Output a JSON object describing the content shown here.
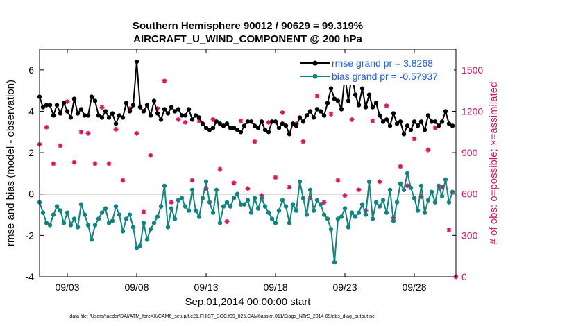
{
  "chart_data": {
    "type": "line",
    "title": "Southern Hemisphere 90012 / 90629 = 99.319%",
    "subtitle": "AIRCRAFT_U_WIND_COMPONENT @ 200 hPa",
    "xlabel": "Sep.01,2014 00:00:00 start",
    "ylabel": "rmse and bias (model - observation)",
    "y2label": "# of obs: o=possible; ×=assimilated",
    "footnote": "data file: /Users/raeder/DAI/ATM_forcXX/CAM6_setup/f.e21.FHIST_BGC.f09_025.CAM6assim.011/Diags_NTrS_2014-09/obs_diag_output.nc",
    "xlim": [
      1.0,
      31.0
    ],
    "ylim": [
      -4,
      7
    ],
    "y2lim": [
      0,
      1650
    ],
    "xticks": [
      3,
      8,
      13,
      18,
      23,
      28
    ],
    "xtick_labels": [
      "09/03",
      "09/08",
      "09/13",
      "09/18",
      "09/23",
      "09/28"
    ],
    "yticks": [
      -4,
      -2,
      0,
      2,
      4,
      6
    ],
    "ytick_labels": [
      "-4",
      "-2",
      "0",
      "2",
      "4",
      "6"
    ],
    "y2ticks": [
      0,
      300,
      600,
      900,
      1200,
      1500
    ],
    "y2tick_labels": [
      "0",
      "300",
      "600",
      "900",
      "1200",
      "1500"
    ],
    "legend_location": "top-right",
    "colors": {
      "rmse": "#000000",
      "bias": "#12847f",
      "obs": "#d6175f",
      "legend_text": "#1f5fd6",
      "zero_line": "#bbbbbb"
    },
    "series": [
      {
        "name": "rmse grand pr = 3.8268",
        "x": [
          1.0,
          1.25,
          1.5,
          1.75,
          2.0,
          2.25,
          2.5,
          2.75,
          3.0,
          3.25,
          3.5,
          3.75,
          4.0,
          4.25,
          4.5,
          4.75,
          5.0,
          5.25,
          5.5,
          5.75,
          6.0,
          6.25,
          6.5,
          6.75,
          7.0,
          7.25,
          7.5,
          7.75,
          8.0,
          8.25,
          8.5,
          8.75,
          9.0,
          9.25,
          9.5,
          9.75,
          10.0,
          10.25,
          10.5,
          10.75,
          11.0,
          11.25,
          11.5,
          11.75,
          12.0,
          12.25,
          12.5,
          12.75,
          13.0,
          13.25,
          13.5,
          13.75,
          14.0,
          14.25,
          14.5,
          14.75,
          15.0,
          15.25,
          15.5,
          15.75,
          16.0,
          16.25,
          16.5,
          16.75,
          17.0,
          17.25,
          17.5,
          17.75,
          18.0,
          18.25,
          18.5,
          18.75,
          19.0,
          19.25,
          19.5,
          19.75,
          20.0,
          20.25,
          20.5,
          20.75,
          21.0,
          21.25,
          21.5,
          21.75,
          22.0,
          22.25,
          22.5,
          22.75,
          23.0,
          23.25,
          23.5,
          23.75,
          24.0,
          24.25,
          24.5,
          24.75,
          25.0,
          25.25,
          25.5,
          25.75,
          26.0,
          26.25,
          26.5,
          26.75,
          27.0,
          27.25,
          27.5,
          27.75,
          28.0,
          28.25,
          28.5,
          28.75,
          29.0,
          29.25,
          29.5,
          29.75,
          30.0,
          30.25,
          30.5,
          30.75
        ],
        "values": [
          4.7,
          4.2,
          4.3,
          4.3,
          3.8,
          4.3,
          3.9,
          4.4,
          4.0,
          3.7,
          4.6,
          3.9,
          4.1,
          3.8,
          3.8,
          4.7,
          4.5,
          3.8,
          3.7,
          4.0,
          3.7,
          3.9,
          3.4,
          3.8,
          3.7,
          4.4,
          4.0,
          4.3,
          6.4,
          4.2,
          4.0,
          4.3,
          3.8,
          4.5,
          3.9,
          3.6,
          4.1,
          3.9,
          4.2,
          4.0,
          4.1,
          3.8,
          3.8,
          4.1,
          3.6,
          3.8,
          3.7,
          3.4,
          3.2,
          3.1,
          3.2,
          3.5,
          3.4,
          3.3,
          3.4,
          3.2,
          3.2,
          3.1,
          3.0,
          3.3,
          3.5,
          3.5,
          3.3,
          3.2,
          3.5,
          3.1,
          3.0,
          3.5,
          3.5,
          3.2,
          3.4,
          3.3,
          2.9,
          3.4,
          3.3,
          3.7,
          3.5,
          3.8,
          4.0,
          3.7,
          4.1,
          4.0,
          3.8,
          4.4,
          5.1,
          4.6,
          4.5,
          4.1,
          5.7,
          4.5,
          5.8,
          4.8,
          4.3,
          5.1,
          4.2,
          4.8,
          4.2,
          4.4,
          3.8,
          3.5,
          3.6,
          3.3,
          3.9,
          3.4,
          3.5,
          2.9,
          3.3,
          3.1,
          3.5,
          3.3,
          3.5,
          3.1,
          3.8,
          3.5,
          3.5,
          3.3,
          3.5,
          4.0,
          3.4,
          3.3
        ]
      },
      {
        "name": "bias grand pr = -0.57937",
        "x": [
          1.0,
          1.25,
          1.5,
          1.75,
          2.0,
          2.25,
          2.5,
          2.75,
          3.0,
          3.25,
          3.5,
          3.75,
          4.0,
          4.25,
          4.5,
          4.75,
          5.0,
          5.25,
          5.5,
          5.75,
          6.0,
          6.25,
          6.5,
          6.75,
          7.0,
          7.25,
          7.5,
          7.75,
          8.0,
          8.25,
          8.5,
          8.75,
          9.0,
          9.25,
          9.5,
          9.75,
          10.0,
          10.25,
          10.5,
          10.75,
          11.0,
          11.25,
          11.5,
          11.75,
          12.0,
          12.25,
          12.5,
          12.75,
          13.0,
          13.25,
          13.5,
          13.75,
          14.0,
          14.25,
          14.5,
          14.75,
          15.0,
          15.25,
          15.5,
          15.75,
          16.0,
          16.25,
          16.5,
          16.75,
          17.0,
          17.25,
          17.5,
          17.75,
          18.0,
          18.25,
          18.5,
          18.75,
          19.0,
          19.25,
          19.5,
          19.75,
          20.0,
          20.25,
          20.5,
          20.75,
          21.0,
          21.25,
          21.5,
          21.75,
          22.0,
          22.25,
          22.5,
          22.75,
          23.0,
          23.25,
          23.5,
          23.75,
          24.0,
          24.25,
          24.5,
          24.75,
          25.0,
          25.25,
          25.5,
          25.75,
          26.0,
          26.25,
          26.5,
          26.75,
          27.0,
          27.25,
          27.5,
          27.75,
          28.0,
          28.25,
          28.5,
          28.75,
          29.0,
          29.25,
          29.5,
          29.75,
          30.0,
          30.25,
          30.5,
          30.75
        ],
        "values": [
          -0.4,
          -0.9,
          -1.4,
          -1.5,
          -1.0,
          -0.6,
          -0.8,
          -1.4,
          -0.9,
          -1.5,
          -1.2,
          -1.6,
          -0.5,
          -1.0,
          -1.5,
          -2.2,
          -1.5,
          -1.2,
          -0.9,
          -0.7,
          -1.4,
          -1.3,
          -0.6,
          -1.0,
          -1.8,
          -1.2,
          -1.0,
          -1.6,
          -2.6,
          -2.5,
          -1.4,
          -2.2,
          -1.7,
          -1.4,
          -1.1,
          -0.6,
          0.4,
          -1.6,
          -0.7,
          -1.2,
          -0.3,
          -0.2,
          -0.6,
          -0.8,
          0.2,
          -0.8,
          -1.1,
          -0.2,
          0.6,
          -0.4,
          -0.9,
          0.2,
          -1.4,
          -0.6,
          -0.4,
          -0.6,
          -0.2,
          0.0,
          -0.5,
          -0.5,
          -0.3,
          -0.9,
          -0.2,
          -0.7,
          -0.2,
          -0.6,
          -0.9,
          -1.2,
          -1.4,
          -0.8,
          -0.3,
          -0.6,
          -1.4,
          -0.5,
          -0.8,
          0.6,
          -0.2,
          -1.0,
          0.2,
          -0.8,
          -0.3,
          -0.5,
          -1.0,
          -1.2,
          -1.7,
          -3.3,
          -1.2,
          -1.1,
          -0.7,
          -1.6,
          -0.9,
          -1.1,
          -0.9,
          -0.5,
          -1.0,
          0.6,
          -1.2,
          -0.4,
          -0.6,
          -0.3,
          -0.9,
          0.2,
          -1.3,
          -0.4,
          0.5,
          0.2,
          1.0,
          0.3,
          -0.2,
          -0.8,
          0.4,
          -0.9,
          -0.3,
          0.1,
          -0.4,
          0.4,
          -0.1,
          0.7,
          -0.4,
          0.1
        ]
      },
      {
        "name": "# of obs possible / assimilated",
        "x": [
          1.0,
          1.5,
          2.0,
          2.5,
          3.0,
          3.5,
          4.0,
          4.5,
          5.0,
          5.5,
          6.0,
          6.5,
          7.0,
          7.5,
          8.0,
          8.5,
          9.0,
          9.5,
          10.0,
          10.5,
          11.0,
          11.5,
          12.0,
          12.5,
          13.0,
          13.5,
          14.0,
          14.5,
          15.0,
          15.5,
          16.0,
          16.5,
          17.0,
          17.5,
          18.0,
          18.5,
          19.0,
          19.5,
          20.0,
          20.5,
          21.0,
          21.5,
          22.0,
          22.5,
          23.0,
          23.5,
          24.0,
          24.5,
          25.0,
          25.5,
          26.0,
          26.5,
          27.0,
          27.5,
          28.0,
          28.5,
          29.0,
          29.5,
          30.0,
          30.5,
          31.0
        ],
        "values": [
          960,
          1085,
          820,
          950,
          1270,
          830,
          1050,
          1040,
          820,
          1230,
          820,
          1070,
          700,
          1220,
          1040,
          470,
          880,
          1220,
          1420,
          540,
          1140,
          1120,
          700,
          1130,
          640,
          1140,
          780,
          400,
          680,
          1130,
          640,
          980,
          590,
          1120,
          720,
          1190,
          650,
          1110,
          980,
          570,
          1310,
          540,
          1180,
          700,
          590,
          1140,
          630,
          480,
          1130,
          690,
          1240,
          430,
          800,
          660,
          1000,
          580,
          920,
          1080,
          650,
          340,
          0
        ]
      }
    ]
  }
}
